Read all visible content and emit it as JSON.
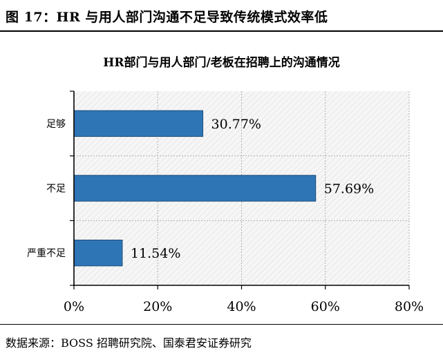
{
  "figure": {
    "title": "图 17：HR 与用人部门沟通不足导致传统模式效率低",
    "source": "数据来源：BOSS 招聘研究院、国泰君安证券研究"
  },
  "chart_data": {
    "type": "bar",
    "orientation": "horizontal",
    "title": "HR部门与用人部门/老板在招聘上的沟通情况",
    "categories": [
      "足够",
      "不足",
      "严重不足"
    ],
    "values": [
      30.77,
      57.69,
      11.54
    ],
    "value_labels": [
      "30.77%",
      "57.69%",
      "11.54%"
    ],
    "xlim": [
      0,
      80
    ],
    "xticks": [
      0,
      20,
      40,
      60,
      80
    ],
    "xtick_labels": [
      "0%",
      "20%",
      "40%",
      "60%",
      "80%"
    ],
    "xlabel": "",
    "ylabel": "",
    "grid": true,
    "legend": false,
    "bar_color": "#2E75B6",
    "bar_edge_color": "#1F4E79",
    "plot_background": "#f4f4f4"
  }
}
